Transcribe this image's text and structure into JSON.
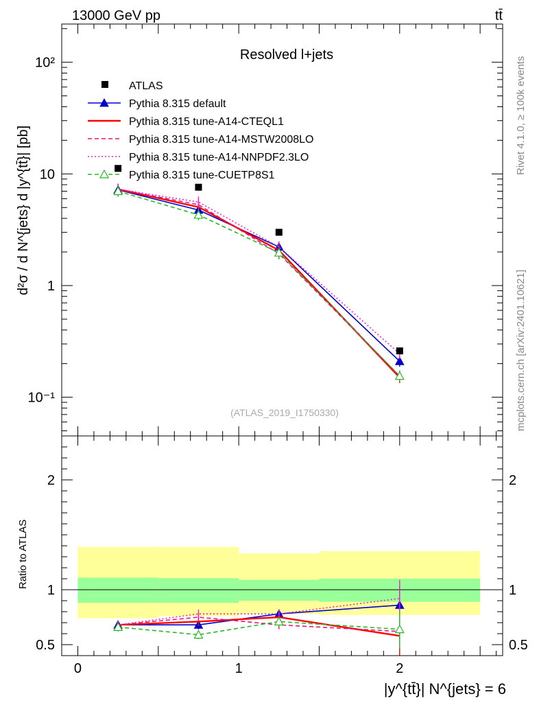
{
  "header": {
    "energy_label": "13000 GeV pp",
    "process_label": "tt̄"
  },
  "side_labels": {
    "rivet": "Rivet 4.1.0, ≥ 100k events",
    "mcplots": "mcplots.cern.ch [arXiv:2401.10621]"
  },
  "chart_data": {
    "type": "line",
    "title": "Resolved l+jets",
    "analysis_tag": "(ATLAS_2019_I1750330)",
    "ylabel": "d²σ / d N^{jets} d |y^{tt̄}| [pb]",
    "xlabel": "|y^{tt̄}| N^{jets} = 6",
    "ratio_ylabel": "Ratio to ATLAS",
    "xlim": [
      -0.1,
      2.64
    ],
    "ylim": [
      0.045,
      220
    ],
    "yscale": "log",
    "ratio_ylim": [
      0.4,
      2.4
    ],
    "x_ticks": [
      "0",
      "1",
      "2"
    ],
    "y_ticks": [
      "10⁻¹",
      "1",
      "10",
      "10²"
    ],
    "ratio_ticks": [
      "0.5",
      "1",
      "2"
    ],
    "x": [
      0.25,
      0.75,
      1.25,
      2.0
    ],
    "bin_edges": [
      0,
      0.5,
      1.0,
      1.5,
      2.5
    ],
    "data": {
      "name": "ATLAS",
      "color": "#000000",
      "values": [
        11.2,
        7.6,
        3.0,
        0.26
      ]
    },
    "ratio_bands": {
      "inner": {
        "color": "#99ff99",
        "low": [
          0.88,
          0.88,
          0.9,
          0.89
        ],
        "high": [
          1.11,
          1.105,
          1.09,
          1.1
        ]
      },
      "outer": {
        "color": "#ffff99",
        "low": [
          0.74,
          0.76,
          0.78,
          0.77
        ],
        "high": [
          1.39,
          1.39,
          1.33,
          1.35
        ]
      }
    },
    "series": [
      {
        "name": "Pythia 8.315 default",
        "color": "#0000cc",
        "dash": "solid",
        "marker": "triangle-filled",
        "values": [
          7.2,
          4.75,
          2.22,
          0.21
        ],
        "ratio": [
          0.68,
          0.68,
          0.78,
          0.86
        ]
      },
      {
        "name": "Pythia 8.315 tune-A14-CTEQL1",
        "color": "#ff0000",
        "dash": "solid",
        "marker": "none",
        "values": [
          7.3,
          5.05,
          2.07,
          0.15
        ],
        "ratio": [
          0.68,
          0.71,
          0.75,
          0.58
        ]
      },
      {
        "name": "Pythia 8.315 tune-A14-MSTW2008LO",
        "color": "#ee1177",
        "dash": "dashed",
        "marker": "none",
        "values": [
          7.3,
          5.3,
          1.93,
          0.155
        ],
        "ratio": [
          0.68,
          0.75,
          0.68,
          0.62
        ]
      },
      {
        "name": "Pythia 8.315 tune-A14-NNPDF2.3LO",
        "color": "#ee22cc",
        "dash": "dotted",
        "marker": "none",
        "values": [
          7.3,
          5.6,
          2.22,
          0.245
        ],
        "ratio": [
          0.68,
          0.78,
          0.78,
          0.92
        ]
      },
      {
        "name": "Pythia 8.315 tune-CUETP8S1",
        "color": "#22bb22",
        "dash": "dashed",
        "marker": "triangle-open",
        "values": [
          7.0,
          4.3,
          1.97,
          0.155
        ],
        "ratio": [
          0.66,
          0.59,
          0.71,
          0.64
        ]
      }
    ]
  }
}
